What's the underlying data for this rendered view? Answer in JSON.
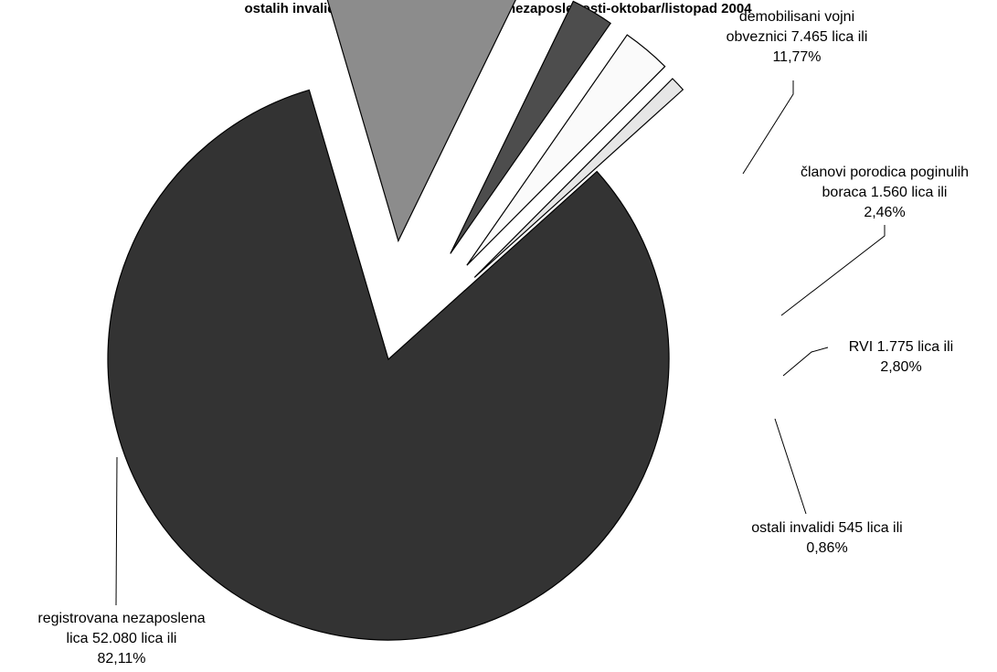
{
  "chart_data": {
    "type": "pie",
    "title": "ostalih invalida u ukupnoj registrovanoj nezaposlenosti-oktobar/listopad 2004",
    "slices": [
      {
        "label_lines": [
          "registrovana nezaposlena",
          "lica 52.080 lica ili",
          "82,11%"
        ],
        "value": 52080,
        "percent": 82.11,
        "color": "#333333"
      },
      {
        "label_lines": [
          "demobilisani vojni",
          "obveznici 7.465 lica ili",
          "11,77%"
        ],
        "value": 7465,
        "percent": 11.77,
        "color": "#8c8c8c"
      },
      {
        "label_lines": [
          "članovi porodica poginulih",
          "boraca 1.560 lica ili",
          "2,46%"
        ],
        "value": 1560,
        "percent": 2.46,
        "color": "#4d4d4d"
      },
      {
        "label_lines": [
          "RVI 1.775 lica ili",
          "2,80%"
        ],
        "value": 1775,
        "percent": 2.8,
        "color": "#fafafa"
      },
      {
        "label_lines": [
          "ostali invalidi 545 lica ili",
          "0,86%"
        ],
        "value": 545,
        "percent": 0.86,
        "color": "#e6e6e6"
      }
    ],
    "legend": "none"
  }
}
